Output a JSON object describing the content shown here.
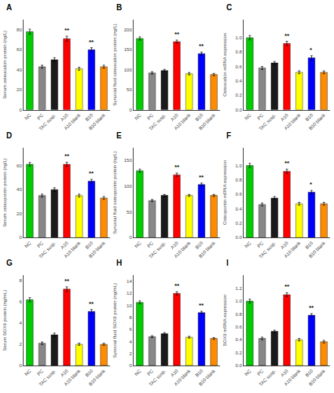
{
  "chart_data": [
    {
      "type": "bar",
      "title": "A",
      "ylabel": "Serum osteocalcin protein (ng/L)",
      "categories": [
        "NC",
        "PC",
        "TAC susp.",
        "A10",
        "A10 blank",
        "B10",
        "B10 blank"
      ],
      "colors": [
        "#00cc00",
        "#888888",
        "#1a1a1a",
        "#ff0000",
        "#ffff00",
        "#0000ff",
        "#ff8c00"
      ],
      "values": [
        78,
        43,
        50,
        71,
        41,
        60,
        43
      ],
      "errors": [
        2.5,
        1.5,
        2.0,
        2.5,
        1.5,
        2.0,
        1.5
      ],
      "annotations": [
        {
          "x": "A10",
          "text": "**"
        },
        {
          "x": "B10",
          "text": "**"
        }
      ],
      "ylim": [
        0,
        90
      ],
      "yticks": [
        0,
        20,
        40,
        60,
        80
      ],
      "grid": false
    },
    {
      "type": "bar",
      "title": "B",
      "ylabel": "Synovial fluid osteocalcin protein (ng/L)",
      "categories": [
        "NC",
        "PC",
        "TAC susp.",
        "A10",
        "A10 blank",
        "B10",
        "B10 blank"
      ],
      "colors": [
        "#00cc00",
        "#888888",
        "#1a1a1a",
        "#ff0000",
        "#ffff00",
        "#0000ff",
        "#ff8c00"
      ],
      "values": [
        178,
        92,
        98,
        170,
        90,
        140,
        88
      ],
      "errors": [
        4,
        3,
        3,
        4,
        3,
        4,
        3
      ],
      "annotations": [
        {
          "x": "A10",
          "text": "**"
        },
        {
          "x": "B10",
          "text": "**"
        }
      ],
      "ylim": [
        0,
        225
      ],
      "yticks": [
        0,
        50,
        100,
        150,
        200
      ],
      "grid": false
    },
    {
      "type": "bar",
      "title": "C",
      "ylabel": "Osteocalcin mRNA expression",
      "categories": [
        "NC",
        "PC",
        "TAC susp.",
        "A10",
        "A10 blank",
        "B10",
        "B10 blank"
      ],
      "colors": [
        "#00cc00",
        "#888888",
        "#1a1a1a",
        "#ff0000",
        "#ffff00",
        "#0000ff",
        "#ff8c00"
      ],
      "values": [
        1.0,
        0.58,
        0.65,
        0.92,
        0.52,
        0.72,
        0.52
      ],
      "errors": [
        0.03,
        0.02,
        0.02,
        0.03,
        0.02,
        0.03,
        0.02
      ],
      "annotations": [
        {
          "x": "A10",
          "text": "**"
        },
        {
          "x": "B10",
          "text": "*"
        }
      ],
      "ylim": [
        0,
        1.25
      ],
      "yticks": [
        {
          "value": 0,
          "label": "0.0"
        },
        0.2,
        0.4,
        0.6,
        0.8,
        {
          "value": 1,
          "label": "1.0"
        }
      ],
      "grid": false
    },
    {
      "type": "bar",
      "title": "D",
      "ylabel": "Serum osteopontin protein (ng/L)",
      "categories": [
        "NC",
        "PC",
        "TAC susp.",
        "A10",
        "A10 blank",
        "B10",
        "B10 blank"
      ],
      "colors": [
        "#00cc00",
        "#888888",
        "#1a1a1a",
        "#ff0000",
        "#ffff00",
        "#0000ff",
        "#ff8c00"
      ],
      "values": [
        61,
        35,
        40,
        61,
        35,
        47,
        33
      ],
      "errors": [
        1.5,
        1.2,
        1.5,
        1.8,
        1.2,
        1.5,
        1.2
      ],
      "annotations": [
        {
          "x": "A10",
          "text": "**"
        },
        {
          "x": "B10",
          "text": "**"
        }
      ],
      "ylim": [
        0,
        75
      ],
      "yticks": [
        0,
        20,
        40,
        60
      ],
      "grid": false
    },
    {
      "type": "bar",
      "title": "E",
      "ylabel": "Synovial fluid osteopontin protein (ng/L)",
      "categories": [
        "NC",
        "PC",
        "TAC susp.",
        "A10",
        "A10 blank",
        "B10",
        "B10 blank"
      ],
      "colors": [
        "#00cc00",
        "#888888",
        "#1a1a1a",
        "#ff0000",
        "#ffff00",
        "#0000ff",
        "#ff8c00"
      ],
      "values": [
        130,
        72,
        82,
        122,
        82,
        103,
        82
      ],
      "errors": [
        3,
        2,
        2,
        3.5,
        2,
        3,
        2
      ],
      "annotations": [
        {
          "x": "A10",
          "text": "**"
        },
        {
          "x": "B10",
          "text": "**"
        }
      ],
      "ylim": [
        0,
        175
      ],
      "yticks": [
        0,
        50,
        100,
        150
      ],
      "grid": false
    },
    {
      "type": "bar",
      "title": "F",
      "ylabel": "Osteopontin mRNA expression",
      "categories": [
        "NC",
        "PC",
        "TAC susp.",
        "A10",
        "A10 blank",
        "B10",
        "B10 blank"
      ],
      "colors": [
        "#00cc00",
        "#888888",
        "#1a1a1a",
        "#ff0000",
        "#ffff00",
        "#0000ff",
        "#ff8c00"
      ],
      "values": [
        1.0,
        0.46,
        0.55,
        0.92,
        0.47,
        0.63,
        0.47
      ],
      "errors": [
        0.03,
        0.02,
        0.02,
        0.03,
        0.02,
        0.025,
        0.02
      ],
      "annotations": [
        {
          "x": "A10",
          "text": "**"
        },
        {
          "x": "B10",
          "text": "*"
        }
      ],
      "ylim": [
        0,
        1.25
      ],
      "yticks": [
        {
          "value": 0,
          "label": "0.0"
        },
        0.2,
        0.4,
        0.6,
        0.8,
        {
          "value": 1,
          "label": "1.0"
        }
      ],
      "grid": false
    },
    {
      "type": "bar",
      "title": "G",
      "ylabel": "Serum SOX9 protein (ng/mL)",
      "categories": [
        "NC",
        "PC",
        "TAC susp.",
        "A10",
        "A10 blank",
        "B10",
        "B10 blank"
      ],
      "colors": [
        "#00cc00",
        "#888888",
        "#1a1a1a",
        "#ff0000",
        "#ffff00",
        "#0000ff",
        "#ff8c00"
      ],
      "values": [
        6.2,
        2.1,
        2.9,
        7.2,
        2.0,
        5.1,
        2.0
      ],
      "errors": [
        0.2,
        0.12,
        0.15,
        0.22,
        0.1,
        0.18,
        0.1
      ],
      "annotations": [
        {
          "x": "A10",
          "text": "**"
        },
        {
          "x": "B10",
          "text": "**"
        }
      ],
      "ylim": [
        0,
        8.5
      ],
      "yticks": [
        0,
        2,
        4,
        6,
        8
      ],
      "grid": false
    },
    {
      "type": "bar",
      "title": "H",
      "ylabel": "Synovial fluid SOX9 protein (ng/mL)",
      "categories": [
        "NC",
        "PC",
        "TAC susp.",
        "A10",
        "A10 blank",
        "B10",
        "B10 blank"
      ],
      "colors": [
        "#00cc00",
        "#888888",
        "#1a1a1a",
        "#ff0000",
        "#ffff00",
        "#0000ff",
        "#ff8c00"
      ],
      "values": [
        10.5,
        4.8,
        5.3,
        12.0,
        4.7,
        8.8,
        4.5
      ],
      "errors": [
        0.25,
        0.15,
        0.18,
        0.28,
        0.15,
        0.22,
        0.15
      ],
      "annotations": [
        {
          "x": "A10",
          "text": "**"
        },
        {
          "x": "B10",
          "text": "**"
        }
      ],
      "ylim": [
        0,
        15
      ],
      "yticks": [
        0,
        2,
        4,
        6,
        8,
        10,
        12,
        14
      ],
      "grid": false
    },
    {
      "type": "bar",
      "title": "I",
      "ylabel": "SOX9 mRNA expression",
      "categories": [
        "NC",
        "PC",
        "TAC susp.",
        "A10",
        "A10 blank",
        "B10",
        "B10 blank"
      ],
      "colors": [
        "#00cc00",
        "#888888",
        "#1a1a1a",
        "#ff0000",
        "#ffff00",
        "#0000ff",
        "#ff8c00"
      ],
      "values": [
        1.0,
        0.42,
        0.53,
        1.1,
        0.4,
        0.78,
        0.37
      ],
      "errors": [
        0.03,
        0.02,
        0.02,
        0.03,
        0.02,
        0.025,
        0.02
      ],
      "annotations": [
        {
          "x": "A10",
          "text": "**"
        },
        {
          "x": "B10",
          "text": "**"
        }
      ],
      "ylim": [
        0,
        1.4
      ],
      "yticks": [
        {
          "value": 0,
          "label": "0.0"
        },
        0.2,
        0.4,
        0.6,
        0.8,
        {
          "value": 1,
          "label": "1.0"
        },
        1.2
      ],
      "grid": false
    }
  ]
}
